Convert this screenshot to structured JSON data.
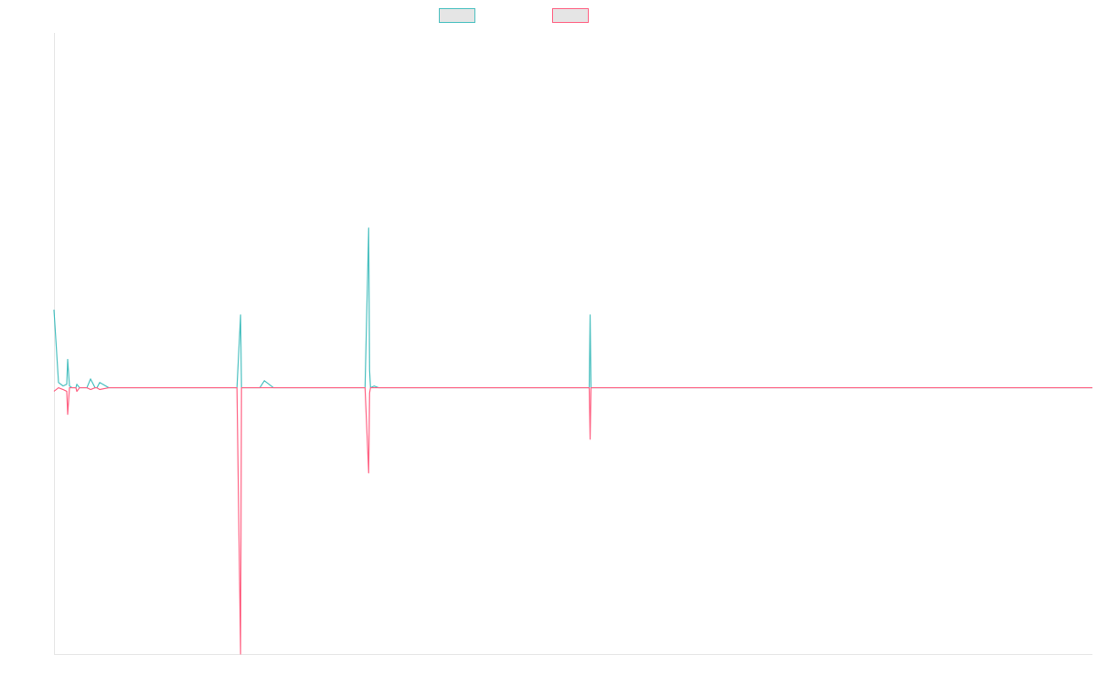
{
  "chart_data": {
    "type": "line",
    "title": "",
    "xlabel": "",
    "ylabel": "",
    "grid": false,
    "legend": "top-center",
    "ylim": [
      -15,
      20
    ],
    "x": [
      0,
      5,
      10,
      14,
      15,
      17,
      20,
      24,
      25,
      28,
      32,
      36,
      40,
      45,
      47,
      50,
      60,
      70,
      84,
      90,
      95,
      96,
      98,
      100,
      110,
      115,
      120,
      140,
      150,
      155,
      160,
      165,
      170,
      175,
      180,
      185,
      190,
      195,
      200,
      204,
      205,
      210,
      215,
      220,
      225,
      230,
      240,
      250,
      260,
      261,
      262,
      265,
      270,
      280,
      290,
      300,
      310,
      320,
      330,
      340,
      344,
      345,
      346,
      350,
      355,
      360,
      400,
      450,
      500,
      540,
      550,
      560,
      580,
      585,
      586,
      587,
      590,
      600,
      700,
      800,
      900,
      1000,
      1100,
      1135
    ],
    "series": [
      {
        "name": "",
        "color": "#4bc0c0",
        "values": [
          4.4,
          0.3,
          0.1,
          0.2,
          1.6,
          0.1,
          0,
          0,
          0.2,
          0,
          0,
          0,
          0.5,
          0,
          0,
          0.3,
          0,
          0,
          0,
          0,
          0,
          0,
          0,
          0,
          0,
          0,
          0,
          0,
          0,
          0,
          0,
          0,
          0,
          0,
          0,
          0,
          0,
          0,
          0,
          4.1,
          0,
          0,
          0,
          0,
          0,
          0.4,
          0,
          0,
          0,
          0,
          0,
          0,
          0,
          0,
          0,
          0,
          0,
          0,
          0,
          0,
          9,
          1,
          0,
          0.1,
          0,
          0,
          0,
          0,
          0,
          0,
          0,
          0,
          0,
          0,
          4.1,
          0,
          0,
          0,
          0,
          0,
          0,
          0,
          0,
          0
        ]
      },
      {
        "name": "",
        "color": "#ff6384",
        "values": [
          -0.2,
          0,
          -0.1,
          -0.2,
          -1.5,
          0,
          0,
          0,
          -0.2,
          0,
          0,
          0,
          -0.1,
          0,
          0,
          -0.1,
          0,
          0,
          0,
          0,
          0,
          0,
          0,
          0,
          0,
          0,
          0,
          0,
          0,
          0,
          0,
          0,
          0,
          0,
          0,
          0,
          0,
          0,
          0,
          -15,
          0,
          0,
          0,
          0,
          0,
          0,
          0,
          0,
          0,
          0,
          0,
          0,
          0,
          0,
          0,
          0,
          0,
          0,
          0,
          0,
          -4.8,
          -0.3,
          0,
          0,
          0,
          0,
          0,
          0,
          0,
          0,
          0,
          0,
          0,
          0,
          -2.9,
          0,
          0,
          0,
          0,
          0,
          0,
          0,
          0,
          0
        ]
      }
    ]
  }
}
